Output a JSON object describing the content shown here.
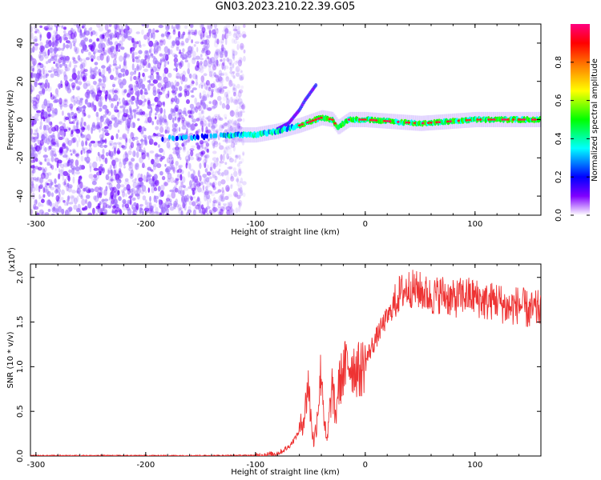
{
  "title": "GN03.2023.210.22.39.G05",
  "chart_data": [
    {
      "type": "heatmap",
      "title": "GN03.2023.210.22.39.G05",
      "xlabel": "Height of straight line (km)",
      "ylabel": "Frequency (Hz)",
      "xlim": [
        -305,
        160
      ],
      "ylim": [
        -50,
        50
      ],
      "xticks": [
        -300,
        -200,
        -100,
        0,
        100
      ],
      "yticks": [
        -40,
        -20,
        0,
        20,
        40
      ],
      "colorbar": {
        "label": "Normalized spectral amplitude",
        "range": [
          0.0,
          1.0
        ],
        "ticks": [
          0.0,
          0.2,
          0.4,
          0.6,
          0.8
        ],
        "tick_labels": [
          "0.0",
          "0.2",
          "0.4",
          "0.6",
          "0.8"
        ],
        "colors": [
          "#ffffff",
          "#8000ff",
          "#0000ff",
          "#00ffff",
          "#00ff00",
          "#ffff00",
          "#ff8000",
          "#ff0000",
          "#ff0080"
        ]
      },
      "noise_region_x": [
        -305,
        -120
      ],
      "signal_track": {
        "x": [
          -190,
          -150,
          -120,
          -100,
          -80,
          -60,
          -50,
          -40,
          -30,
          -25,
          -20,
          -15,
          0,
          50,
          100,
          160
        ],
        "y": [
          -10,
          -9,
          -8,
          -8,
          -6,
          -3,
          -1,
          1,
          0,
          -4,
          -2,
          0,
          0,
          -2,
          0,
          0
        ]
      },
      "secondary_track": {
        "x": [
          -80,
          -70,
          -60,
          -55,
          -50,
          -45
        ],
        "y": [
          -5,
          -2,
          5,
          10,
          14,
          18
        ]
      }
    },
    {
      "type": "line",
      "xlabel": "Height of straight line (km)",
      "ylabel": "SNR (10 * v/v)",
      "y_multiplier": "(x10",
      "y_multiplier_exp": "4",
      "y_multiplier_close": ")",
      "xlim": [
        -305,
        160
      ],
      "ylim": [
        0.0,
        2.15
      ],
      "xticks": [
        -300,
        -200,
        -100,
        0,
        100
      ],
      "yticks": [
        0.0,
        0.5,
        1.0,
        1.5,
        2.0
      ],
      "ytick_labels": [
        "0.0",
        "0.5",
        "1.0",
        "1.5",
        "2.0"
      ],
      "color": "#ee3333",
      "series": [
        {
          "name": "SNR",
          "x": [
            -305,
            -150,
            -100,
            -90,
            -80,
            -75,
            -70,
            -65,
            -60,
            -55,
            -52,
            -50,
            -47,
            -45,
            -42,
            -40,
            -37,
            -35,
            -32,
            -30,
            -27,
            -25,
            -20,
            -15,
            -10,
            -5,
            0,
            5,
            10,
            15,
            20,
            25,
            30,
            35,
            40,
            50,
            60,
            70,
            80,
            90,
            100,
            110,
            120,
            130,
            140,
            150,
            160
          ],
          "y": [
            0.005,
            0.005,
            0.008,
            0.015,
            0.03,
            0.06,
            0.1,
            0.18,
            0.28,
            0.48,
            0.85,
            0.5,
            0.15,
            0.3,
            0.7,
            1.0,
            0.35,
            0.12,
            0.55,
            0.8,
            0.4,
            0.75,
            0.95,
            1.05,
            1.0,
            0.95,
            1.05,
            1.2,
            1.32,
            1.45,
            1.55,
            1.65,
            1.8,
            1.85,
            1.88,
            1.85,
            1.78,
            1.82,
            1.75,
            1.8,
            1.78,
            1.72,
            1.75,
            1.65,
            1.7,
            1.62,
            1.65
          ]
        }
      ]
    }
  ]
}
